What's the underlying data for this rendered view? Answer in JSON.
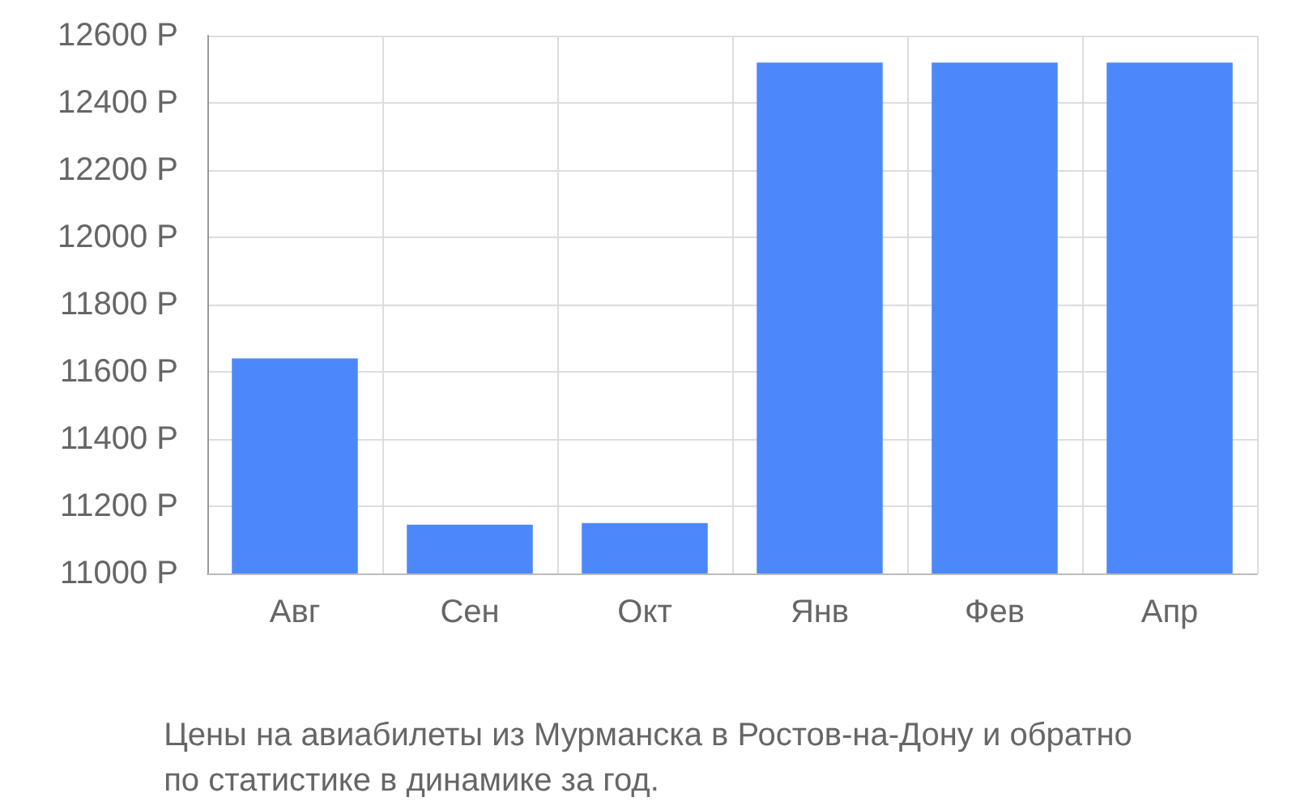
{
  "chart_data": {
    "type": "bar",
    "categories": [
      "Авг",
      "Сен",
      "Окт",
      "Янв",
      "Фев",
      "Апр"
    ],
    "values": [
      11640,
      11145,
      11150,
      12520,
      12520,
      12520
    ],
    "color": "#4d88fa",
    "ylim": [
      11000,
      12600
    ],
    "yticks": [
      {
        "value": 11000,
        "label": "11000 Р"
      },
      {
        "value": 11200,
        "label": "11200 Р"
      },
      {
        "value": 11400,
        "label": "11400 Р"
      },
      {
        "value": 11600,
        "label": "11600 Р"
      },
      {
        "value": 11800,
        "label": "11800 Р"
      },
      {
        "value": 12000,
        "label": "12000 Р"
      },
      {
        "value": 12200,
        "label": "12200 Р"
      },
      {
        "value": 12400,
        "label": "12400 Р"
      },
      {
        "value": 12600,
        "label": "12600 Р"
      }
    ],
    "grid": true,
    "annotations": [
      "Цены на авиабилеты из Мурманска в Ростов-на-Дону и обратно\nпо статистике в динамике за год."
    ]
  }
}
